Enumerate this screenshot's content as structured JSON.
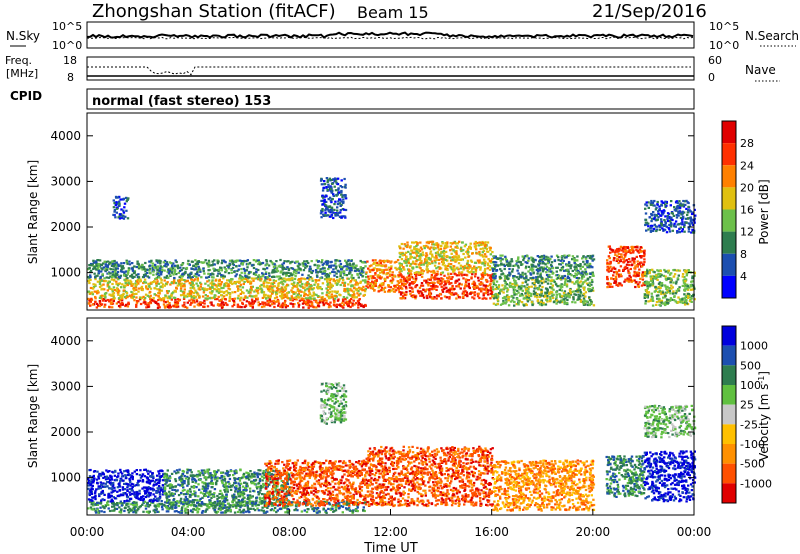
{
  "header": {
    "station": "Zhongshan Station (fitACF)",
    "beam": "Beam 15",
    "date": "21/Sep/2016"
  },
  "strips": {
    "nsky_label": "N.Sky",
    "nsearch_label": "N.Search",
    "log_top": "10^5",
    "log_bottom": "10^0",
    "freq_label_1": "Freq.",
    "freq_label_2": "[MHz]",
    "freq_top": "18",
    "freq_bottom": "8",
    "nave_label": "Nave",
    "nave_top": "60",
    "nave_bottom": "0",
    "cpid_label": "CPID",
    "cpid_text": "normal (fast stereo) 153"
  },
  "x_axis": {
    "title": "Time UT",
    "ticks": [
      "00:00",
      "04:00",
      "08:00",
      "12:00",
      "16:00",
      "20:00",
      "00:00"
    ]
  },
  "colors": {
    "power": [
      "#0000ff",
      "#1c4fb0",
      "#2e7d4f",
      "#6cc04a",
      "#e0c010",
      "#ff8000",
      "#ff3000",
      "#e00000"
    ],
    "velocity": [
      "#e00000",
      "#ff5000",
      "#ff9000",
      "#ffc000",
      "#c8c8c8",
      "#60c040",
      "#2e7d4f",
      "#1c4fb0",
      "#0000dd"
    ]
  },
  "chart_data": [
    {
      "type": "heatmap",
      "title": "Power",
      "ylabel": "Slant Range [km]",
      "xlabel": "Time UT",
      "yticks": [
        "1000",
        "2000",
        "3000",
        "4000"
      ],
      "ylim": [
        180,
        4500
      ],
      "xlim": [
        0,
        24
      ],
      "colorbar": {
        "label": "Power [dB]",
        "ticks": [
          "4",
          "8",
          "12",
          "16",
          "20",
          "24",
          "28"
        ],
        "range": [
          0,
          32
        ]
      },
      "clusters": [
        {
          "t0": 0.0,
          "t1": 11.0,
          "r0": 250,
          "r1": 450,
          "value": 26
        },
        {
          "t0": 0.0,
          "t1": 11.0,
          "r0": 450,
          "r1": 900,
          "value": 17
        },
        {
          "t0": 0.0,
          "t1": 11.0,
          "r0": 900,
          "r1": 1300,
          "value": 9
        },
        {
          "t0": 1.0,
          "t1": 1.6,
          "r0": 2200,
          "r1": 2700,
          "value": 6
        },
        {
          "t0": 9.2,
          "t1": 10.2,
          "r0": 2200,
          "r1": 3100,
          "value": 6
        },
        {
          "t0": 11.0,
          "t1": 12.3,
          "r0": 600,
          "r1": 1300,
          "value": 22
        },
        {
          "t0": 12.3,
          "t1": 16.0,
          "r0": 450,
          "r1": 1000,
          "value": 25
        },
        {
          "t0": 12.3,
          "t1": 16.0,
          "r0": 1000,
          "r1": 1700,
          "value": 17
        },
        {
          "t0": 16.0,
          "t1": 20.0,
          "r0": 300,
          "r1": 900,
          "value": 14
        },
        {
          "t0": 16.0,
          "t1": 20.0,
          "r0": 900,
          "r1": 1400,
          "value": 9
        },
        {
          "t0": 20.5,
          "t1": 22.0,
          "r0": 700,
          "r1": 1600,
          "value": 24
        },
        {
          "t0": 22.0,
          "t1": 24.0,
          "r0": 300,
          "r1": 1100,
          "value": 12
        },
        {
          "t0": 22.0,
          "t1": 24.0,
          "r0": 1900,
          "r1": 2600,
          "value": 6
        }
      ]
    },
    {
      "type": "heatmap",
      "title": "Velocity",
      "ylabel": "Slant Range [km]",
      "xlabel": "Time UT",
      "yticks": [
        "1000",
        "2000",
        "3000",
        "4000"
      ],
      "ylim": [
        180,
        4500
      ],
      "xlim": [
        0,
        24
      ],
      "colorbar": {
        "label": "Velocity [m s-1]",
        "ticks": [
          "-1000",
          "-500",
          "-100",
          "-25",
          "25",
          "100",
          "500",
          "1000"
        ]
      },
      "clusters": [
        {
          "t0": 0.0,
          "t1": 11.0,
          "r0": 250,
          "r1": 500,
          "value": "100"
        },
        {
          "t0": 0.0,
          "t1": 3.0,
          "r0": 500,
          "r1": 1200,
          "value": "1000"
        },
        {
          "t0": 3.0,
          "t1": 8.0,
          "r0": 400,
          "r1": 1200,
          "value": "100"
        },
        {
          "t0": 7.0,
          "t1": 11.0,
          "r0": 400,
          "r1": 1400,
          "value": "-500"
        },
        {
          "t0": 9.2,
          "t1": 10.2,
          "r0": 2200,
          "r1": 3100,
          "value": "25"
        },
        {
          "t0": 11.0,
          "t1": 16.0,
          "r0": 400,
          "r1": 1700,
          "value": "-500"
        },
        {
          "t0": 16.0,
          "t1": 20.0,
          "r0": 300,
          "r1": 1400,
          "value": "-100"
        },
        {
          "t0": 20.5,
          "t1": 22.0,
          "r0": 600,
          "r1": 1500,
          "value": "100"
        },
        {
          "t0": 22.0,
          "t1": 24.0,
          "r0": 500,
          "r1": 1600,
          "value": "1000"
        },
        {
          "t0": 22.0,
          "t1": 24.0,
          "r0": 1900,
          "r1": 2600,
          "value": "25"
        }
      ]
    }
  ]
}
